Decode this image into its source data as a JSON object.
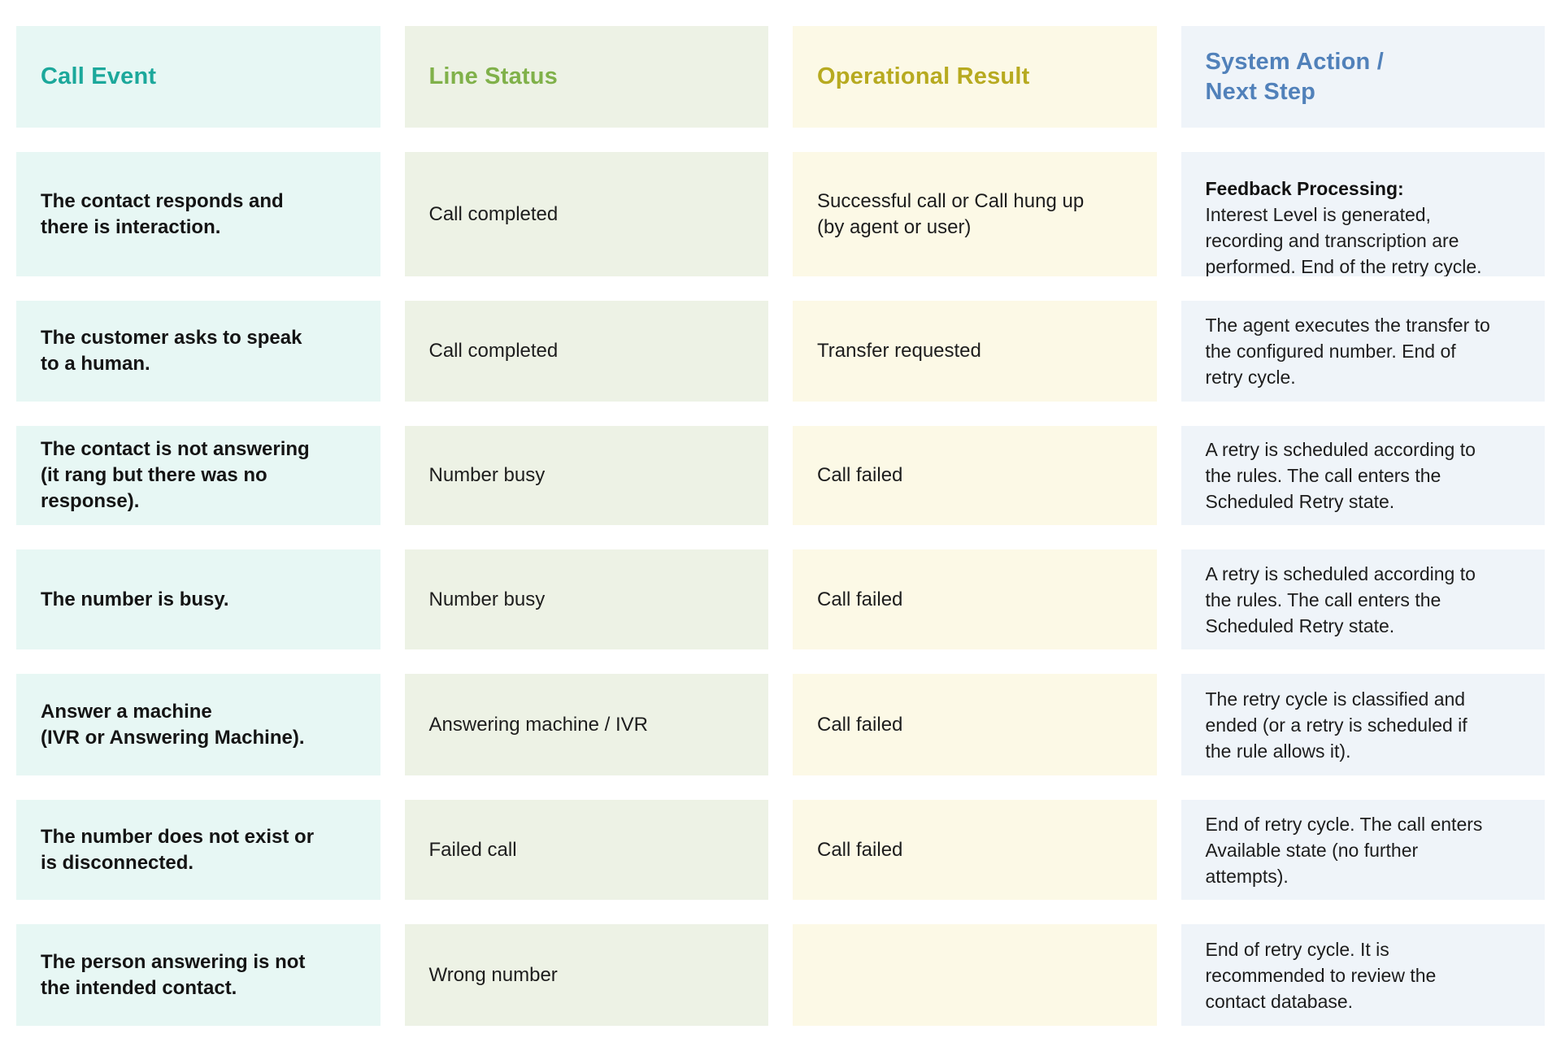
{
  "table": {
    "columns": [
      {
        "id": "call_event",
        "label": "Call Event",
        "header_color": "#1ca89b",
        "bg": "#e7f7f4"
      },
      {
        "id": "line_status",
        "label": "Line Status",
        "header_color": "#80b14a",
        "bg": "#edf2e5"
      },
      {
        "id": "operational_result",
        "label": "Operational Result",
        "header_color": "#b7aa20",
        "bg": "#fcf9e6"
      },
      {
        "id": "system_action",
        "label": "System Action /\nNext Step",
        "header_color": "#5181ba",
        "bg": "#eff4f9"
      }
    ],
    "rows": [
      {
        "call_event": "The contact responds and\nthere is interaction.",
        "line_status": "Call completed",
        "operational_result": "Successful call or Call hung up\n(by agent or user)",
        "system_action_lead": "Feedback Processing:",
        "system_action": "Interest Level is generated,\nrecording and transcription are\nperformed. End of the retry cycle."
      },
      {
        "call_event": "The customer asks to speak\nto a human.",
        "line_status": "Call completed",
        "operational_result": "Transfer requested",
        "system_action": "The agent executes the transfer to\nthe configured number. End of\nretry cycle."
      },
      {
        "call_event": "The contact is not answering\n(it rang but there was no\nresponse).",
        "line_status": "Number busy",
        "operational_result": "Call failed",
        "system_action": "A retry is scheduled according to\nthe rules. The call enters the\nScheduled Retry state."
      },
      {
        "call_event": "The number is busy.",
        "line_status": "Number busy",
        "operational_result": "Call failed",
        "system_action": "A retry is scheduled according to\nthe rules. The call enters the\nScheduled Retry state."
      },
      {
        "call_event": "Answer a machine\n(IVR or Answering Machine).",
        "line_status": "Answering machine / IVR",
        "operational_result": "Call failed",
        "system_action": "The retry cycle is classified and\nended (or a retry is scheduled if\nthe rule allows it)."
      },
      {
        "call_event": "The number does not exist or\nis disconnected.",
        "line_status": "Failed call",
        "operational_result": "Call failed",
        "system_action": "End of retry cycle. The call enters\nAvailable state (no further\nattempts)."
      },
      {
        "call_event": "The person answering is not\nthe intended contact.",
        "line_status": "Wrong number",
        "operational_result": "",
        "system_action": "End of retry cycle. It is\nrecommended to review the\ncontact database."
      }
    ]
  }
}
